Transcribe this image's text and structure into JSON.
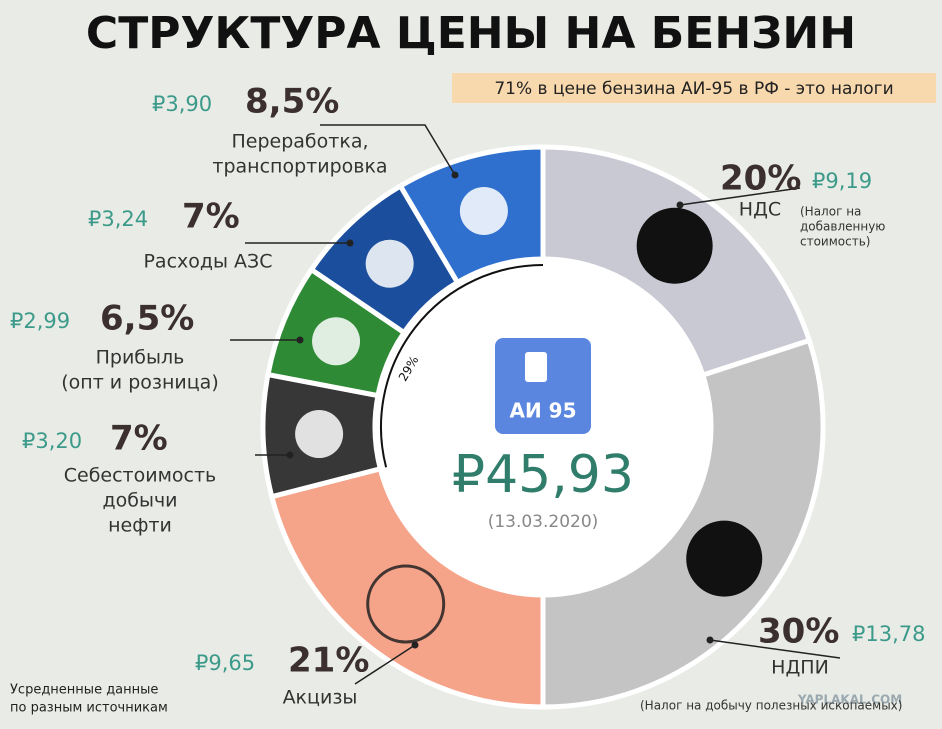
{
  "chart_data": {
    "type": "donut",
    "title": "СТРУКТУРА ЦЕНЫ НА БЕНЗИН",
    "subtitle": "71% в цене бензина АИ-95 в РФ - это налоги",
    "center_badge": "АИ 95",
    "center_total": "₽45,93",
    "center_date": "(13.03.2020)",
    "bracket_label": "29%",
    "footnote_lines": [
      "Усредненные данные",
      "по разным источникам"
    ],
    "watermark": "YAPLAKAL.COM",
    "segments": [
      {
        "name_lines": [
          "НДС"
        ],
        "note_lines": [
          "(Налог на",
          "добавленную",
          "стоимость)"
        ],
        "value": 20,
        "value_label": "20%",
        "amount": "₽9,19",
        "color": "#c9c9d4"
      },
      {
        "name_lines": [
          "НДПИ"
        ],
        "note_lines": [
          "(Налог на добычу полезных ископаемых)"
        ],
        "value": 30,
        "value_label": "30%",
        "amount": "₽13,78",
        "color": "#c4c4c4"
      },
      {
        "name_lines": [
          "Акцизы"
        ],
        "value": 21,
        "value_label": "21%",
        "amount": "₽9,65",
        "color": "#f5a48a"
      },
      {
        "name_lines": [
          "Себестоимость",
          "добычи",
          "нефти"
        ],
        "value": 7,
        "value_label": "7%",
        "amount": "₽3,20",
        "color": "#373737"
      },
      {
        "name_lines": [
          "Прибыль",
          "(опт и розница)"
        ],
        "value": 6.5,
        "value_label": "6,5%",
        "amount": "₽2,99",
        "color": "#2f8a36"
      },
      {
        "name_lines": [
          "Расходы АЗС"
        ],
        "value": 7,
        "value_label": "7%",
        "amount": "₽3,24",
        "color": "#1b4f9e"
      },
      {
        "name_lines": [
          "Переработка,",
          "транспортировка"
        ],
        "value": 8.5,
        "value_label": "8,5%",
        "amount": "₽3,90",
        "color": "#2f70cf"
      }
    ]
  }
}
